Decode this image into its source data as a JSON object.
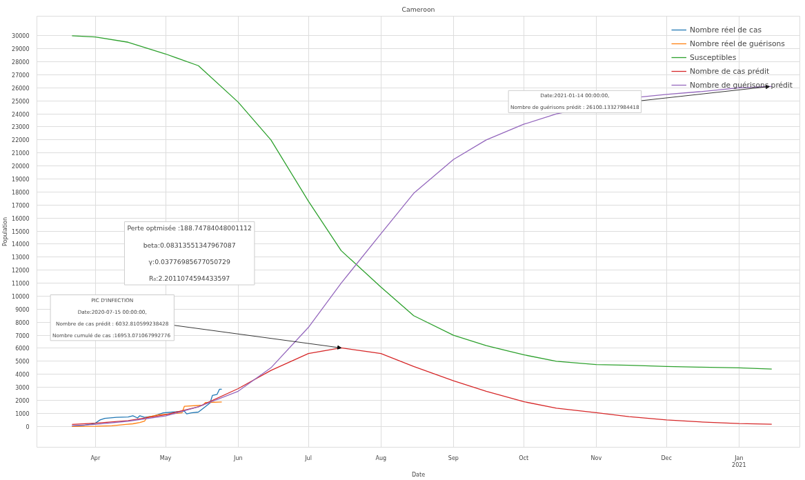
{
  "chart_data": {
    "type": "line",
    "title": "Cameroon",
    "xlabel": "Date",
    "ylabel": "Population",
    "xlim": [
      "2020-03-07",
      "2021-01-27"
    ],
    "ylim": [
      -1600,
      31500
    ],
    "xticks": [
      {
        "value": "2020-04-01",
        "label": "Apr"
      },
      {
        "value": "2020-05-01",
        "label": "May"
      },
      {
        "value": "2020-06-01",
        "label": "Jun"
      },
      {
        "value": "2020-07-01",
        "label": "Jul"
      },
      {
        "value": "2020-08-01",
        "label": "Aug"
      },
      {
        "value": "2020-09-01",
        "label": "Sep"
      },
      {
        "value": "2020-10-01",
        "label": "Oct"
      },
      {
        "value": "2020-11-01",
        "label": "Nov"
      },
      {
        "value": "2020-12-01",
        "label": "Dec"
      },
      {
        "value": "2021-01-01",
        "label": "Jan\n2021"
      }
    ],
    "yticks": [
      0,
      1000,
      2000,
      3000,
      4000,
      5000,
      6000,
      7000,
      8000,
      9000,
      10000,
      11000,
      12000,
      13000,
      14000,
      15000,
      16000,
      17000,
      18000,
      19000,
      20000,
      21000,
      22000,
      23000,
      24000,
      25000,
      26000,
      27000,
      28000,
      29000,
      30000
    ],
    "grid": true,
    "legend": "top right",
    "line_style": "solid",
    "marker": "none",
    "series": [
      {
        "name": "Nombre réel de cas",
        "color": "#1f77b4",
        "x": [
          "2020-03-22",
          "2020-03-27",
          "2020-04-01",
          "2020-04-03",
          "2020-04-05",
          "2020-04-10",
          "2020-04-15",
          "2020-04-17",
          "2020-04-19",
          "2020-04-20",
          "2020-04-22",
          "2020-04-26",
          "2020-04-30",
          "2020-05-04",
          "2020-05-09",
          "2020-05-10",
          "2020-05-12",
          "2020-05-15",
          "2020-05-17",
          "2020-05-20",
          "2020-05-21",
          "2020-05-23",
          "2020-05-24",
          "2020-05-25"
        ],
        "values": [
          30,
          80,
          250,
          500,
          620,
          700,
          720,
          820,
          650,
          820,
          700,
          800,
          1040,
          1100,
          1170,
          960,
          1040,
          1100,
          1380,
          1800,
          2380,
          2460,
          2850,
          2850
        ]
      },
      {
        "name": "Nombre réel de guérisons",
        "color": "#ff7f0e",
        "x": [
          "2020-03-22",
          "2020-04-01",
          "2020-04-08",
          "2020-04-14",
          "2020-04-17",
          "2020-04-20",
          "2020-04-22",
          "2020-04-23",
          "2020-04-28",
          "2020-05-03",
          "2020-05-08",
          "2020-05-09",
          "2020-05-17",
          "2020-05-18",
          "2020-05-25"
        ],
        "values": [
          0,
          10,
          50,
          150,
          200,
          300,
          400,
          700,
          900,
          950,
          1040,
          1540,
          1630,
          1830,
          1880
        ]
      },
      {
        "name": "Susceptibles",
        "color": "#2ca02c",
        "x": [
          "2020-03-22",
          "2020-04-01",
          "2020-04-15",
          "2020-05-01",
          "2020-05-15",
          "2020-06-01",
          "2020-06-15",
          "2020-07-01",
          "2020-07-15",
          "2020-08-01",
          "2020-08-15",
          "2020-09-01",
          "2020-09-15",
          "2020-10-01",
          "2020-10-15",
          "2020-11-01",
          "2020-11-15",
          "2020-12-01",
          "2020-12-15",
          "2021-01-01",
          "2021-01-15"
        ],
        "values": [
          30000,
          29900,
          29500,
          28600,
          27700,
          24900,
          22000,
          17300,
          13500,
          10700,
          8500,
          7000,
          6200,
          5500,
          5000,
          4750,
          4700,
          4600,
          4550,
          4500,
          4400
        ]
      },
      {
        "name": "Nombre de cas prédit",
        "color": "#d62728",
        "x": [
          "2020-03-22",
          "2020-04-01",
          "2020-04-15",
          "2020-05-01",
          "2020-05-15",
          "2020-06-01",
          "2020-06-15",
          "2020-07-01",
          "2020-07-15",
          "2020-08-01",
          "2020-08-15",
          "2020-09-01",
          "2020-09-15",
          "2020-10-01",
          "2020-10-15",
          "2020-11-01",
          "2020-11-15",
          "2020-12-01",
          "2020-12-15",
          "2021-01-01",
          "2021-01-15"
        ],
        "values": [
          150,
          250,
          450,
          900,
          1500,
          2900,
          4300,
          5600,
          6030,
          5600,
          4600,
          3500,
          2700,
          1900,
          1400,
          1050,
          750,
          500,
          350,
          220,
          170
        ]
      },
      {
        "name": "Nombre de guérisons prédit",
        "color": "#9467bd",
        "x": [
          "2020-03-22",
          "2020-04-01",
          "2020-04-15",
          "2020-05-01",
          "2020-05-15",
          "2020-06-01",
          "2020-06-15",
          "2020-07-01",
          "2020-07-15",
          "2020-08-01",
          "2020-08-15",
          "2020-09-01",
          "2020-09-15",
          "2020-10-01",
          "2020-10-15",
          "2020-11-20",
          "2020-12-01",
          "2020-12-15",
          "2021-01-01",
          "2021-01-14",
          "2021-01-15"
        ],
        "values": [
          50,
          150,
          400,
          800,
          1500,
          2700,
          4500,
          7600,
          11000,
          14800,
          17900,
          20500,
          22000,
          23200,
          24000,
          25300,
          25500,
          25700,
          26000,
          26100,
          26110
        ]
      }
    ],
    "annotations": [
      {
        "text": "PIC D'INFECTION\nDate:2020-07-15 00:00:00,\nNombre de cas prédit : 6032.810599238428\nNombre cumulé de cas  :16953.071067992776",
        "x": "2020-07-15",
        "y": 6030
      },
      {
        "text": "Date:2021-01-14 00:00:00,\nNombre de guérisons prédit : 26100.13327984418",
        "x": "2021-01-14",
        "y": 26100
      },
      "Perte optmisée :188.74784048001112\nbeta:0.08313551347967087\nγ:0.03776985677050729\nR₀:2.2011074594433597"
    ]
  }
}
